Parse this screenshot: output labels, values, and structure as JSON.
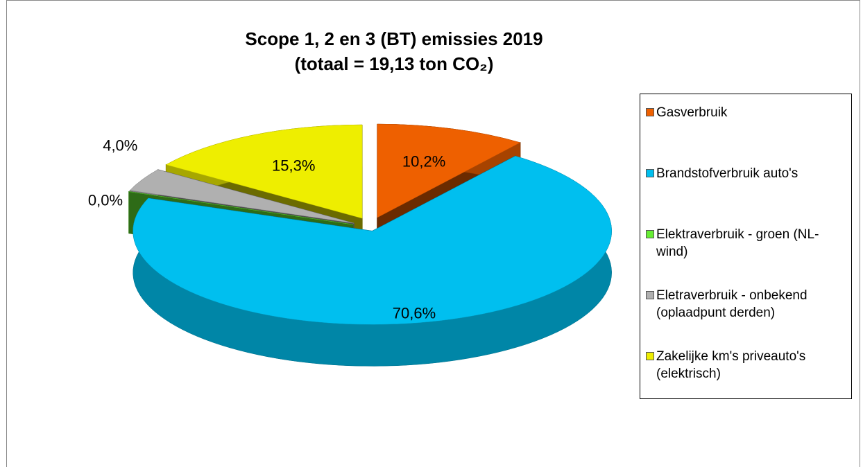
{
  "chart_data": {
    "type": "pie",
    "title": "Scope 1, 2 en 3 (BT) emissies 2019",
    "subtitle": "(totaal = 19,13 ton CO₂)",
    "categories": [
      "Gasverbruik",
      "Brandstofverbruik auto's",
      "Elektraverbruik - groen (NL-wind)",
      "Eletraverbruik - onbekend (oplaadpunt derden)",
      "Zakelijke km's priveauto's (elektrisch)"
    ],
    "values": [
      10.2,
      70.6,
      0.0,
      4.0,
      15.3
    ],
    "value_labels": [
      "10,2%",
      "70,6%",
      "0,0%",
      "4,0%",
      "15,3%"
    ],
    "colors": [
      "#ee6000",
      "#00bfef",
      "#66ee33",
      "#b0b0b0",
      "#eeee00"
    ],
    "legend": "right"
  }
}
